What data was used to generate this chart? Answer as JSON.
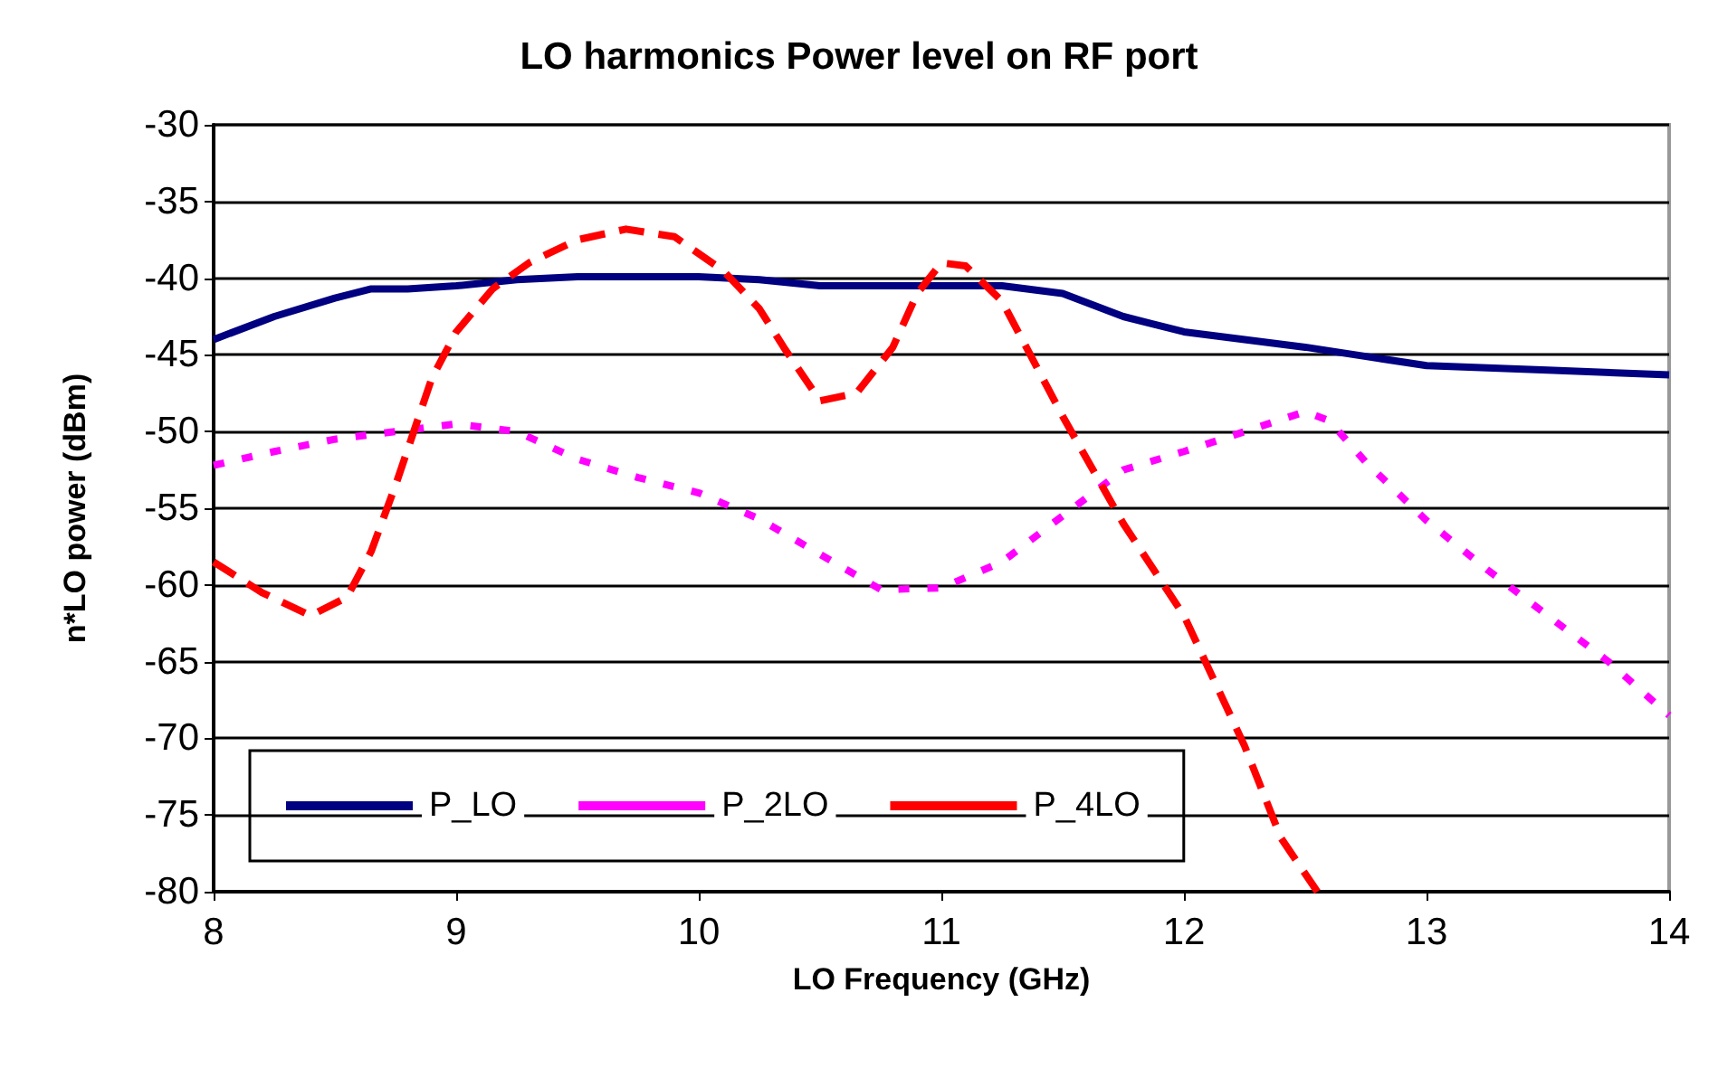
{
  "chart_data": {
    "type": "line",
    "title": "LO harmonics Power level on RF port",
    "xlabel": "LO Frequency (GHz)",
    "ylabel": "n*LO power (dBm)",
    "xlim": [
      8,
      14
    ],
    "xticks": [
      8,
      9,
      10,
      11,
      12,
      13,
      14
    ],
    "ylim": [
      -80,
      -30
    ],
    "yticks": [
      -80,
      -75,
      -70,
      -65,
      -60,
      -55,
      -50,
      -45,
      -40,
      -35,
      -30
    ],
    "grid": "y",
    "legend": "bottom left",
    "marker": "none",
    "series": [
      {
        "name": "P_LO",
        "color": "#000080",
        "line_style": "solid",
        "x": [
          8,
          8.25,
          8.5,
          8.65,
          8.8,
          9,
          9.25,
          9.5,
          10,
          10.25,
          10.5,
          11,
          11.25,
          11.5,
          11.75,
          12,
          12.25,
          12.5,
          12.75,
          13,
          13.5,
          14
        ],
        "values": [
          -44,
          -42.5,
          -41.3,
          -40.7,
          -40.7,
          -40.5,
          -40.1,
          -39.9,
          -39.9,
          -40.1,
          -40.5,
          -40.5,
          -40.5,
          -41,
          -42.5,
          -43.5,
          -44,
          -44.5,
          -45.1,
          -45.7,
          -46,
          -46.3
        ]
      },
      {
        "name": "P_2LO",
        "color": "#ff00ff",
        "line_style": "dotted",
        "x": [
          8,
          8.25,
          8.5,
          8.75,
          9,
          9.25,
          9.5,
          9.75,
          10,
          10.25,
          10.5,
          10.75,
          11,
          11.25,
          11.5,
          11.75,
          12,
          12.25,
          12.5,
          12.6,
          12.75,
          13,
          13.25,
          13.5,
          13.75,
          14
        ],
        "values": [
          -52.2,
          -51.3,
          -50.5,
          -50,
          -49.5,
          -50,
          -51.8,
          -53,
          -54,
          -55.7,
          -58,
          -60.3,
          -60.2,
          -58.5,
          -55.5,
          -52.5,
          -51.3,
          -50,
          -48.7,
          -49.3,
          -52,
          -55.8,
          -59,
          -62,
          -65,
          -68.5
        ]
      },
      {
        "name": "P_4LO",
        "color": "#ff0000",
        "line_style": "dashed",
        "x": [
          8,
          8.2,
          8.4,
          8.55,
          8.65,
          8.75,
          8.9,
          9,
          9.15,
          9.3,
          9.5,
          9.7,
          9.9,
          10.1,
          10.25,
          10.35,
          10.5,
          10.65,
          10.8,
          10.9,
          11,
          11.1,
          11.25,
          11.5,
          11.75,
          12,
          12.25,
          12.4,
          12.55
        ],
        "values": [
          -58.5,
          -60.5,
          -62,
          -60.8,
          -57.8,
          -53.5,
          -46.5,
          -43.5,
          -40.7,
          -39,
          -37.5,
          -36.8,
          -37.3,
          -39.5,
          -42,
          -44.5,
          -48,
          -47.5,
          -44.5,
          -41,
          -39,
          -39.2,
          -41.5,
          -49,
          -56,
          -62,
          -70.5,
          -76.5,
          -80
        ]
      }
    ]
  }
}
